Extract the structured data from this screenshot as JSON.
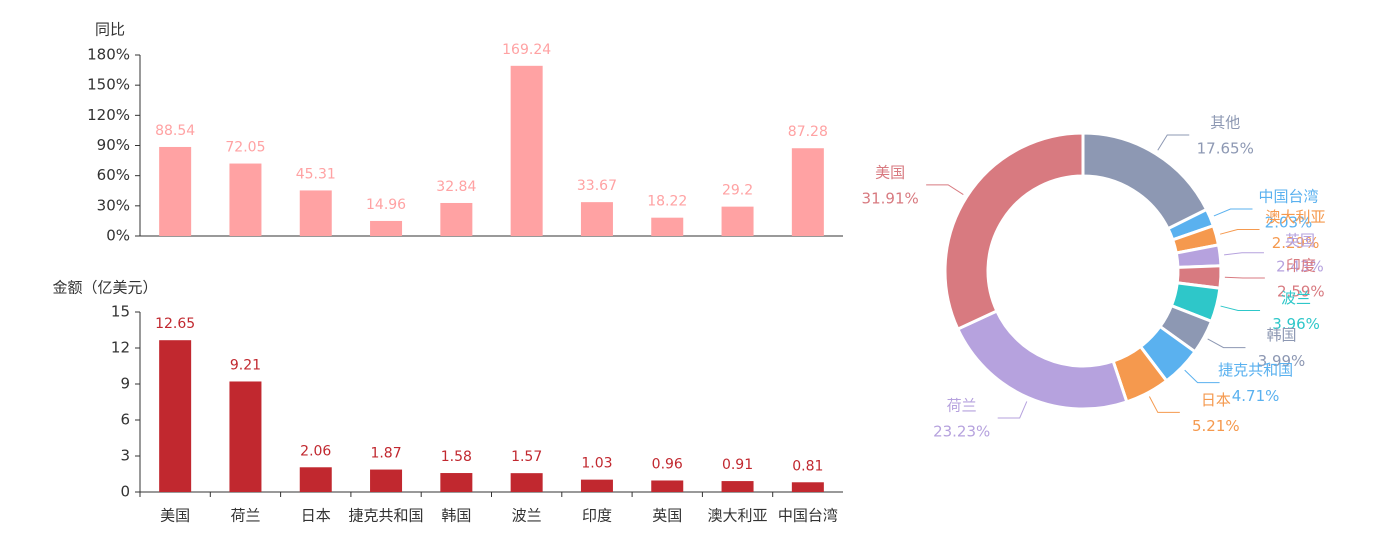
{
  "chart_data": [
    {
      "type": "bar",
      "y_label": "同比",
      "categories": [
        null,
        null,
        null,
        null,
        null,
        null,
        null,
        null,
        null,
        null
      ],
      "values": [
        88.54,
        72.05,
        45.31,
        14.96,
        32.84,
        169.24,
        33.67,
        18.22,
        29.2,
        87.28
      ],
      "color": "#ffa2a3",
      "ylim": [
        0,
        180
      ],
      "yticks": [
        {
          "value": 0,
          "label": "0%"
        },
        {
          "value": 30,
          "label": "30%"
        },
        {
          "value": 60,
          "label": "60%"
        },
        {
          "value": 90,
          "label": "90%"
        },
        {
          "value": 120,
          "label": "120%"
        },
        {
          "value": 150,
          "label": "150%"
        },
        {
          "value": 180,
          "label": "180%"
        }
      ]
    },
    {
      "type": "bar",
      "y_label": "金额（亿美元）",
      "categories": [
        "美国",
        "荷兰",
        "日本",
        "捷克共和国",
        "韩国",
        "波兰",
        "印度",
        "英国",
        "澳大利亚",
        "中国台湾"
      ],
      "values": [
        12.65,
        9.21,
        2.06,
        1.87,
        1.58,
        1.57,
        1.03,
        0.96,
        0.91,
        0.81
      ],
      "color": "#c1282f",
      "ylim": [
        0,
        15
      ],
      "yticks": [
        0,
        3,
        6,
        9,
        12,
        15
      ]
    },
    {
      "type": "pie",
      "categories": [
        "其他",
        "中国台湾",
        "澳大利亚",
        "英国",
        "印度",
        "波兰",
        "韩国",
        "捷克共和国",
        "日本",
        "荷兰",
        "美国"
      ],
      "values": [
        17.65,
        2.03,
        2.29,
        2.43,
        2.59,
        3.96,
        3.99,
        4.71,
        5.21,
        23.23,
        31.91
      ],
      "value_labels": [
        "17.65%",
        "2.03%",
        "2.29%",
        "2.43%",
        "2.59%",
        "3.96%",
        "3.99%",
        "4.71%",
        "5.21%",
        "23.23%",
        "31.91%"
      ],
      "colors": [
        "#8d98b3",
        "#5ab1ef",
        "#f5994e",
        "#b6a2de",
        "#d87a80",
        "#2ec7c9",
        "#8d98b3",
        "#5ab1ef",
        "#f5994e",
        "#b6a2de",
        "#d87a80"
      ]
    }
  ]
}
